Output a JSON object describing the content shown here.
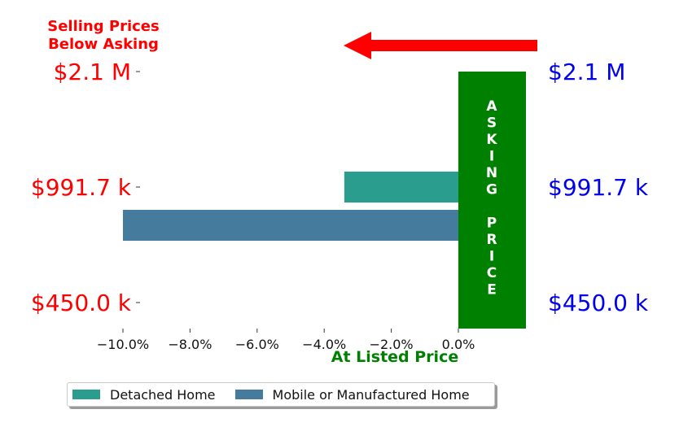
{
  "chart_data": {
    "type": "bar",
    "orientation": "horizontal",
    "annotation_top": [
      "Selling Prices",
      "Below Asking"
    ],
    "xlabel": "At Listed Price",
    "asking_label": "ASKING PRICE",
    "xticks": [
      "−10.0%",
      "−8.0%",
      "−6.0%",
      "−4.0%",
      "−2.0%",
      "0.0%"
    ],
    "xtick_values": [
      -10,
      -8,
      -6,
      -4,
      -2,
      0
    ],
    "xlim": [
      -10.2,
      1.0
    ],
    "left_yticks": [
      "$2.1 M",
      "$991.7 k",
      "$450.0 k"
    ],
    "right_yticks": [
      "$2.1 M",
      "$991.7 k",
      "$450.0 k"
    ],
    "series": [
      {
        "name": "Detached Home",
        "color": "#2a9d8f",
        "price": "$991.7 k",
        "value": -3.4
      },
      {
        "name": "Mobile or Manufactured Home",
        "color": "#457b9d",
        "price": "$991.7 k",
        "value": -10.0
      }
    ],
    "colors": {
      "left_ticks": "#ff0000",
      "right_ticks": "#0000ee",
      "asking_box": "#008000",
      "arrow": "#ff0000",
      "xlabel": "#008000"
    },
    "legend_position": "bottom-left"
  }
}
